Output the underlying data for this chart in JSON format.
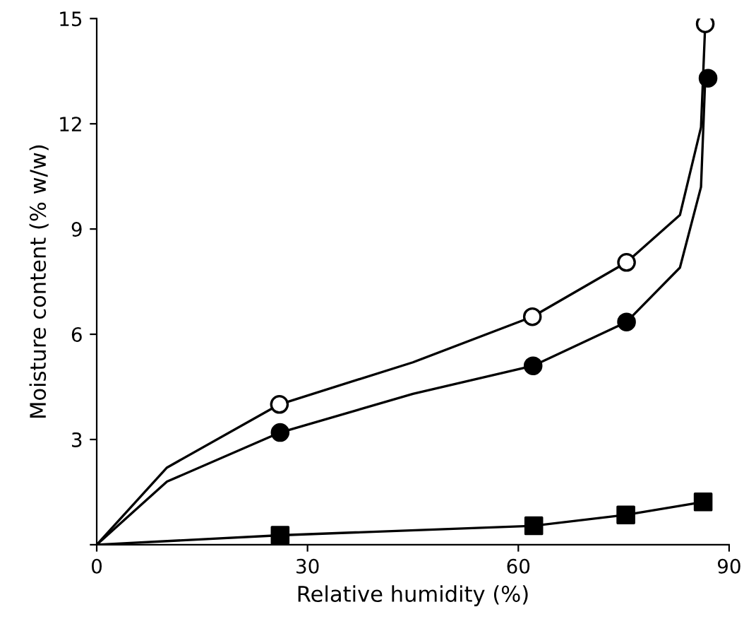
{
  "chart_data": {
    "type": "scatter",
    "xlabel": "Relative humidity (%)",
    "ylabel": "Moisture content (% w/w)",
    "xlim": [
      0,
      90
    ],
    "ylim": [
      0,
      15
    ],
    "xticks": [
      0,
      30,
      60,
      90
    ],
    "yticks": [
      {
        "value": 0,
        "label": null
      },
      3,
      6,
      9,
      12,
      15
    ],
    "grid": false,
    "legend": false,
    "series": [
      {
        "type": "line",
        "color": "#000000",
        "marker": "none",
        "x": [
          0,
          10,
          26.0,
          45,
          62.0,
          75.4,
          83,
          86,
          86.6
        ],
        "values": [
          0,
          2.2,
          4.0,
          5.2,
          6.5,
          8.05,
          9.4,
          11.9,
          14.85
        ]
      },
      {
        "type": "line",
        "color": "#000000",
        "marker": "none",
        "x": [
          0,
          10,
          26.1,
          45,
          62.1,
          75.4,
          83,
          86,
          86.6
        ],
        "values": [
          0,
          1.8,
          3.2,
          4.3,
          5.1,
          6.35,
          7.9,
          10.2,
          13.3
        ]
      },
      {
        "type": "line",
        "color": "#000000",
        "marker": "none",
        "x": [
          0,
          26.1,
          62.2,
          75.3,
          86.3
        ],
        "values": [
          0,
          0.27,
          0.54,
          0.85,
          1.22
        ]
      },
      {
        "color": "#ffffff",
        "marker": "circle",
        "x": [
          26.0,
          62.0,
          75.4,
          86.6
        ],
        "values": [
          4.0,
          6.5,
          8.05,
          14.85
        ]
      },
      {
        "color": "#000000",
        "marker": "circle",
        "x": [
          26.1,
          62.1,
          75.4,
          87.0
        ],
        "values": [
          3.2,
          5.1,
          6.35,
          13.3
        ]
      },
      {
        "color": "#000000",
        "marker": "square",
        "x": [
          26.1,
          62.2,
          75.3,
          86.3
        ],
        "values": [
          0.27,
          0.54,
          0.85,
          1.22
        ]
      }
    ]
  }
}
